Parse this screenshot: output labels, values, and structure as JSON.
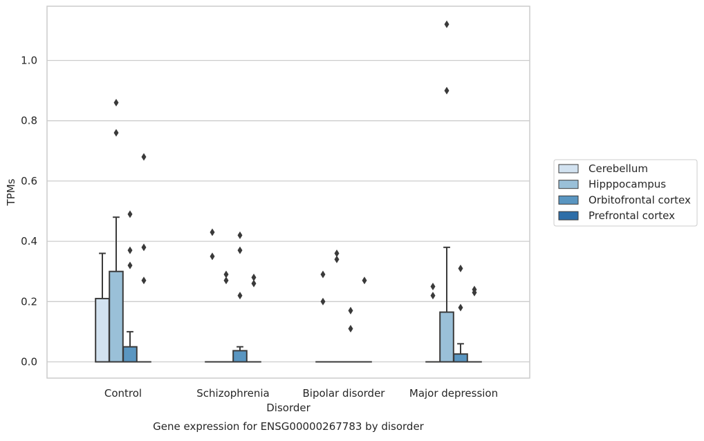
{
  "chart_data": {
    "type": "box",
    "xlabel": "Disorder",
    "ylabel": "TPMs",
    "caption": "Gene expression for ENSG00000267783 by disorder",
    "ylim": [
      -0.055,
      1.18
    ],
    "yticks": [
      0.0,
      0.2,
      0.4,
      0.6,
      0.8,
      1.0
    ],
    "ytick_labels": [
      "0.0",
      "0.2",
      "0.4",
      "0.6",
      "0.8",
      "1.0"
    ],
    "grid": "horizontal",
    "legend_placement": "right",
    "categories": [
      "Control",
      "Schizophrenia",
      "Bipolar disorder",
      "Major depression"
    ],
    "series": [
      {
        "name": "Cerebellum",
        "color": "#d2e2f0",
        "boxes": [
          {
            "q1": 0.0,
            "median": 0.0,
            "q3": 0.21,
            "whisker_low": 0.0,
            "whisker_high": 0.36,
            "outliers": []
          },
          {
            "q1": 0.0,
            "median": 0.0,
            "q3": 0.0,
            "whisker_low": 0.0,
            "whisker_high": 0.0,
            "outliers": [
              0.43,
              0.35
            ]
          },
          {
            "q1": 0.0,
            "median": 0.0,
            "q3": 0.0,
            "whisker_low": 0.0,
            "whisker_high": 0.0,
            "outliers": [
              0.29,
              0.2
            ]
          },
          {
            "q1": 0.0,
            "median": 0.0,
            "q3": 0.0,
            "whisker_low": 0.0,
            "whisker_high": 0.0,
            "outliers": [
              0.25,
              0.22
            ]
          }
        ]
      },
      {
        "name": "Hipppocampus",
        "color": "#9ac0d8",
        "boxes": [
          {
            "q1": 0.0,
            "median": 0.0,
            "q3": 0.3,
            "whisker_low": 0.0,
            "whisker_high": 0.48,
            "outliers": [
              0.86,
              0.76
            ]
          },
          {
            "q1": 0.0,
            "median": 0.0,
            "q3": 0.0,
            "whisker_low": 0.0,
            "whisker_high": 0.0,
            "outliers": [
              0.29,
              0.27
            ]
          },
          {
            "q1": 0.0,
            "median": 0.0,
            "q3": 0.0,
            "whisker_low": 0.0,
            "whisker_high": 0.0,
            "outliers": [
              0.36,
              0.34
            ]
          },
          {
            "q1": 0.0,
            "median": 0.0,
            "q3": 0.165,
            "whisker_low": 0.0,
            "whisker_high": 0.38,
            "outliers": [
              1.12,
              0.9
            ]
          }
        ]
      },
      {
        "name": "Orbitofrontal cortex",
        "color": "#5a96c1",
        "boxes": [
          {
            "q1": 0.0,
            "median": 0.0,
            "q3": 0.05,
            "whisker_low": 0.0,
            "whisker_high": 0.1,
            "outliers": [
              0.49,
              0.37,
              0.32
            ]
          },
          {
            "q1": 0.0,
            "median": 0.0,
            "q3": 0.037,
            "whisker_low": 0.0,
            "whisker_high": 0.05,
            "outliers": [
              0.42,
              0.37,
              0.22
            ]
          },
          {
            "q1": 0.0,
            "median": 0.0,
            "q3": 0.0,
            "whisker_low": 0.0,
            "whisker_high": 0.0,
            "outliers": [
              0.17,
              0.11
            ]
          },
          {
            "q1": 0.0,
            "median": 0.0,
            "q3": 0.026,
            "whisker_low": 0.0,
            "whisker_high": 0.06,
            "outliers": [
              0.31,
              0.18
            ]
          }
        ]
      },
      {
        "name": "Prefrontal cortex",
        "color": "#2e6ea8",
        "boxes": [
          {
            "q1": 0.0,
            "median": 0.0,
            "q3": 0.0,
            "whisker_low": 0.0,
            "whisker_high": 0.0,
            "outliers": [
              0.68,
              0.38,
              0.27
            ]
          },
          {
            "q1": 0.0,
            "median": 0.0,
            "q3": 0.0,
            "whisker_low": 0.0,
            "whisker_high": 0.0,
            "outliers": [
              0.28,
              0.26
            ]
          },
          {
            "q1": 0.0,
            "median": 0.0,
            "q3": 0.0,
            "whisker_low": 0.0,
            "whisker_high": 0.0,
            "outliers": [
              0.27
            ]
          },
          {
            "q1": 0.0,
            "median": 0.0,
            "q3": 0.0,
            "whisker_low": 0.0,
            "whisker_high": 0.0,
            "outliers": [
              0.24,
              0.23
            ]
          }
        ]
      }
    ]
  }
}
